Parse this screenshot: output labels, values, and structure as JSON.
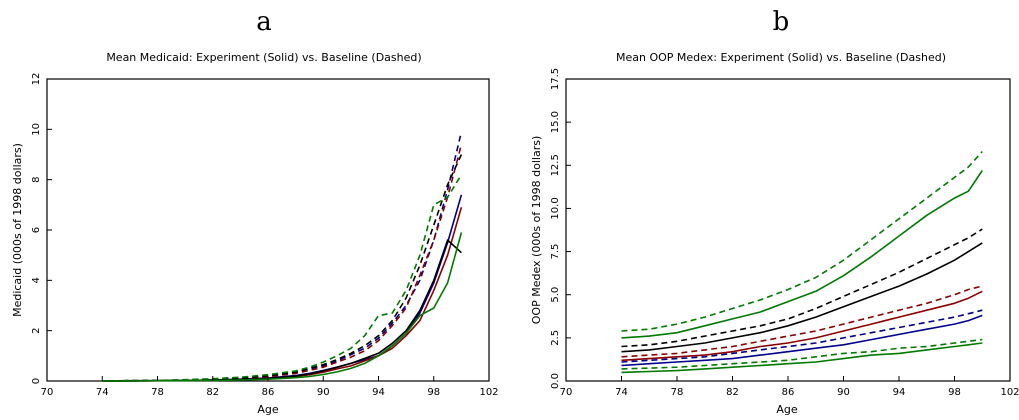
{
  "chart_data": [
    {
      "type": "line",
      "panel": "a",
      "title": "Mean Medicaid:  Experiment (Solid) vs. Baseline (Dashed)",
      "xlabel": "Age",
      "ylabel": "Medicaid (000s of 1998 dollars)",
      "xlim": [
        70,
        102
      ],
      "ylim": [
        0,
        12
      ],
      "xticks": [
        70,
        74,
        78,
        82,
        86,
        90,
        94,
        98,
        102
      ],
      "yticks": [
        0,
        2,
        4,
        6,
        8,
        10,
        12
      ],
      "xtick_labels": [
        "70",
        "74",
        "78",
        "82",
        "86",
        "90",
        "94",
        "98",
        "102"
      ],
      "ytick_labels": [
        "0",
        "2",
        "4",
        "6",
        "8",
        "10",
        "12"
      ],
      "grid": false,
      "x": [
        74,
        76,
        78,
        80,
        82,
        84,
        86,
        88,
        89,
        90,
        91,
        92,
        93,
        94,
        95,
        96,
        97,
        98,
        99,
        100
      ],
      "series": [
        {
          "color": "#00008b",
          "style": "dashed",
          "values": [
            0.0,
            0.01,
            0.02,
            0.04,
            0.07,
            0.12,
            0.2,
            0.35,
            0.48,
            0.6,
            0.8,
            1.05,
            1.3,
            1.7,
            2.3,
            3.0,
            4.0,
            5.6,
            7.6,
            9.9
          ]
        },
        {
          "color": "#00008b",
          "style": "solid",
          "values": [
            0.0,
            0.01,
            0.01,
            0.02,
            0.04,
            0.07,
            0.12,
            0.22,
            0.3,
            0.42,
            0.55,
            0.7,
            0.85,
            1.0,
            1.4,
            1.9,
            2.7,
            3.9,
            5.5,
            7.4
          ]
        },
        {
          "color": "#8b0000",
          "style": "dashed",
          "values": [
            0.0,
            0.01,
            0.02,
            0.03,
            0.06,
            0.1,
            0.17,
            0.3,
            0.42,
            0.55,
            0.75,
            0.95,
            1.2,
            1.6,
            2.2,
            2.9,
            4.2,
            5.6,
            7.3,
            9.4
          ]
        },
        {
          "color": "#8b0000",
          "style": "solid",
          "values": [
            0.0,
            0.0,
            0.01,
            0.02,
            0.03,
            0.06,
            0.1,
            0.18,
            0.25,
            0.35,
            0.48,
            0.6,
            0.8,
            1.0,
            1.3,
            1.8,
            2.4,
            3.6,
            5.0,
            6.9
          ]
        },
        {
          "color": "#000000",
          "style": "dashed",
          "values": [
            0.0,
            0.01,
            0.02,
            0.04,
            0.07,
            0.12,
            0.2,
            0.35,
            0.5,
            0.65,
            0.85,
            1.1,
            1.4,
            1.8,
            2.4,
            3.3,
            4.6,
            6.2,
            7.8,
            9.0
          ]
        },
        {
          "color": "#000000",
          "style": "solid",
          "values": [
            0.0,
            0.0,
            0.01,
            0.02,
            0.04,
            0.06,
            0.1,
            0.2,
            0.28,
            0.4,
            0.55,
            0.7,
            0.9,
            1.1,
            1.5,
            2.0,
            2.8,
            4.0,
            5.6,
            5.1
          ]
        },
        {
          "color": "#007a00",
          "style": "dashed",
          "values": [
            0.0,
            0.01,
            0.02,
            0.05,
            0.09,
            0.15,
            0.25,
            0.4,
            0.55,
            0.75,
            1.0,
            1.3,
            1.8,
            2.6,
            2.7,
            3.6,
            5.0,
            7.0,
            7.3,
            8.2
          ]
        },
        {
          "color": "#007a00",
          "style": "solid",
          "values": [
            0.0,
            0.0,
            0.01,
            0.01,
            0.02,
            0.04,
            0.07,
            0.13,
            0.18,
            0.26,
            0.36,
            0.5,
            0.7,
            1.0,
            1.4,
            1.9,
            2.6,
            2.9,
            3.9,
            5.9
          ]
        }
      ]
    },
    {
      "type": "line",
      "panel": "b",
      "title": "Mean OOP Medex:  Experiment (Solid) vs. Baseline (Dashed)",
      "xlabel": "Age",
      "ylabel": "OOP Medex (000s of 1998 dollars)",
      "xlim": [
        70,
        102
      ],
      "ylim": [
        0,
        17.5
      ],
      "xticks": [
        70,
        74,
        78,
        82,
        86,
        90,
        94,
        98,
        102
      ],
      "yticks": [
        0,
        2.5,
        5,
        7.5,
        10,
        12.5,
        15,
        17.5
      ],
      "xtick_labels": [
        "70",
        "74",
        "78",
        "82",
        "86",
        "90",
        "94",
        "98",
        "102"
      ],
      "ytick_labels": [
        "0.0",
        "2.5",
        "5.0",
        "7.5",
        "10.0",
        "12.5",
        "15.0",
        "17.5"
      ],
      "grid": false,
      "x": [
        74,
        76,
        78,
        80,
        82,
        84,
        86,
        88,
        90,
        92,
        94,
        96,
        98,
        99,
        100
      ],
      "series": [
        {
          "color": "#007a00",
          "style": "dashed",
          "values": [
            2.9,
            3.0,
            3.3,
            3.7,
            4.2,
            4.7,
            5.3,
            6.0,
            7.0,
            8.2,
            9.4,
            10.6,
            11.8,
            12.4,
            13.3
          ]
        },
        {
          "color": "#007a00",
          "style": "solid",
          "values": [
            2.5,
            2.6,
            2.8,
            3.2,
            3.6,
            4.0,
            4.6,
            5.2,
            6.1,
            7.2,
            8.4,
            9.6,
            10.6,
            11.0,
            12.2
          ]
        },
        {
          "color": "#000000",
          "style": "dashed",
          "values": [
            2.0,
            2.1,
            2.3,
            2.6,
            2.9,
            3.2,
            3.6,
            4.2,
            4.9,
            5.6,
            6.3,
            7.1,
            7.9,
            8.3,
            8.8
          ]
        },
        {
          "color": "#000000",
          "style": "solid",
          "values": [
            1.7,
            1.8,
            2.0,
            2.2,
            2.5,
            2.8,
            3.2,
            3.7,
            4.3,
            4.9,
            5.5,
            6.2,
            7.0,
            7.5,
            8.0
          ]
        },
        {
          "color": "#8b0000",
          "style": "dashed",
          "values": [
            1.4,
            1.5,
            1.6,
            1.8,
            2.0,
            2.3,
            2.6,
            2.9,
            3.3,
            3.7,
            4.1,
            4.5,
            5.0,
            5.3,
            5.5
          ]
        },
        {
          "color": "#8b0000",
          "style": "solid",
          "values": [
            1.2,
            1.3,
            1.4,
            1.5,
            1.7,
            2.0,
            2.2,
            2.5,
            2.9,
            3.3,
            3.7,
            4.1,
            4.5,
            4.8,
            5.2
          ]
        },
        {
          "color": "#00008b",
          "style": "dashed",
          "values": [
            1.1,
            1.2,
            1.3,
            1.4,
            1.6,
            1.8,
            2.0,
            2.2,
            2.5,
            2.8,
            3.1,
            3.4,
            3.7,
            3.9,
            4.1
          ]
        },
        {
          "color": "#00008b",
          "style": "solid",
          "values": [
            0.9,
            1.0,
            1.1,
            1.2,
            1.3,
            1.5,
            1.7,
            1.9,
            2.1,
            2.4,
            2.7,
            3.0,
            3.3,
            3.5,
            3.8
          ]
        },
        {
          "color": "#007a00",
          "style": "dashed",
          "values": [
            0.7,
            0.75,
            0.8,
            0.9,
            1.0,
            1.1,
            1.2,
            1.4,
            1.6,
            1.7,
            1.9,
            2.0,
            2.2,
            2.3,
            2.4
          ]
        },
        {
          "color": "#007a00",
          "style": "solid",
          "values": [
            0.5,
            0.55,
            0.6,
            0.7,
            0.8,
            0.9,
            1.0,
            1.1,
            1.3,
            1.5,
            1.6,
            1.8,
            2.0,
            2.1,
            2.2
          ]
        }
      ]
    }
  ]
}
